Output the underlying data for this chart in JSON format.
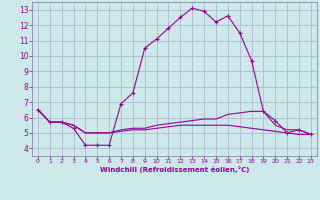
{
  "xlabel": "Windchill (Refroidissement éolien,°C)",
  "xlim": [
    -0.5,
    23.5
  ],
  "ylim": [
    3.5,
    13.5
  ],
  "yticks": [
    4,
    5,
    6,
    7,
    8,
    9,
    10,
    11,
    12,
    13
  ],
  "xticks": [
    0,
    1,
    2,
    3,
    4,
    5,
    6,
    7,
    8,
    9,
    10,
    11,
    12,
    13,
    14,
    15,
    16,
    17,
    18,
    19,
    20,
    21,
    22,
    23
  ],
  "bg_color": "#cce8e8",
  "line_color": "#990099",
  "grid_color": "#aab0cc",
  "lines": [
    [
      6.5,
      5.7,
      5.7,
      5.3,
      4.2,
      4.2,
      4.2,
      6.9,
      7.6,
      10.5,
      11.1,
      11.8,
      12.5,
      13.1,
      12.9,
      12.2,
      12.6,
      11.5,
      9.7,
      6.4,
      5.8,
      5.0,
      5.2,
      4.9
    ],
    [
      6.5,
      5.7,
      5.7,
      5.5,
      5.0,
      5.0,
      5.0,
      5.2,
      5.3,
      5.3,
      5.5,
      5.6,
      5.7,
      5.8,
      5.9,
      5.9,
      6.2,
      6.3,
      6.4,
      6.4,
      5.5,
      5.2,
      5.2,
      4.9
    ],
    [
      6.5,
      5.7,
      5.7,
      5.5,
      5.0,
      5.0,
      5.0,
      5.1,
      5.2,
      5.2,
      5.3,
      5.4,
      5.5,
      5.5,
      5.5,
      5.5,
      5.5,
      5.4,
      5.3,
      5.2,
      5.1,
      5.0,
      4.9,
      4.9
    ]
  ]
}
